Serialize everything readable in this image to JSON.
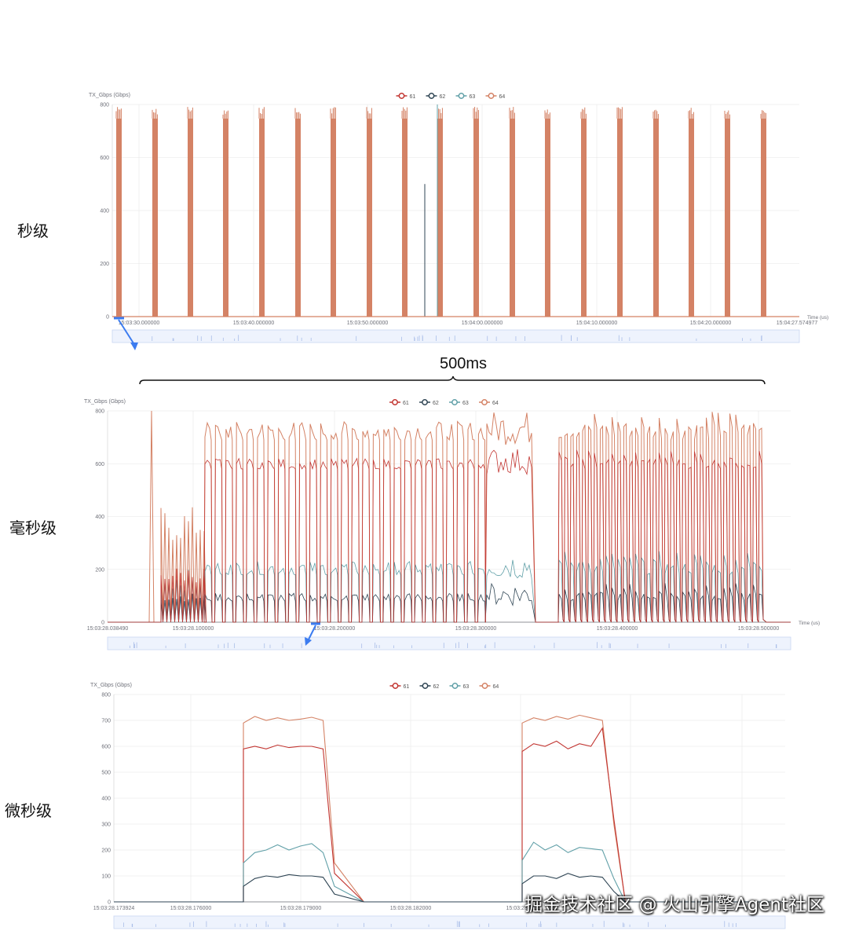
{
  "labels": {
    "seconds": "秒级",
    "milliseconds": "毫秒级",
    "microseconds": "微秒级",
    "span": "500ms"
  },
  "watermark": "掘金技术社区 @ 火山引擎Agent社区",
  "colors": {
    "61": "#c23531",
    "62": "#2f4554",
    "63": "#61a0a8",
    "64": "#d48265",
    "axis": "#6e7079",
    "grid": "#e6e6e6",
    "zoom": "#3c7cf0"
  },
  "chart_data": [
    {
      "type": "line",
      "ylabel": "TX_Gbps (Gbps)",
      "xlabel": "Time (us)",
      "legend": [
        "61",
        "62",
        "63",
        "64"
      ],
      "ylim": [
        0,
        800
      ],
      "yticks": [
        "800",
        "600",
        "400",
        "200",
        "0"
      ],
      "xticks": [
        "15:03:30.000000",
        "15:03:40.000000",
        "15:03:50.000000",
        "15:04:00.000000",
        "15:04:10.000000",
        "15:04:20.000000",
        "15:04:27.574977"
      ],
      "series": [
        {
          "name": "64",
          "description_free": true,
          "bursts_x": [
            0.5,
            3.4,
            6.5,
            9.6,
            12.8,
            15.8,
            18.7,
            21.8,
            24.8,
            28.0,
            31.2,
            34.4,
            37.5,
            40.7,
            43.8,
            47.0,
            50.0,
            53.2,
            56.3
          ],
          "burst_peak": 780
        },
        {
          "name": "63",
          "spike_x": 27.3,
          "spike_value": 500
        }
      ]
    },
    {
      "type": "line",
      "ylabel": "TX_Gbps (Gbps)",
      "xlabel": "Time (us)",
      "legend": [
        "61",
        "62",
        "63",
        "64"
      ],
      "ylim": [
        0,
        800
      ],
      "yticks": [
        "800",
        "600",
        "400",
        "200",
        "0"
      ],
      "xticks": [
        "15:03:28.038490",
        "15:03:28.100000",
        "15:03:28.200000",
        "15:03:28.300000",
        "15:03:28.400000",
        "15:03:28.500000"
      ],
      "series": [
        {
          "name": "61",
          "plateau": 600
        },
        {
          "name": "62",
          "plateau": 100
        },
        {
          "name": "63",
          "plateau": 200
        },
        {
          "name": "64",
          "plateau": 730
        }
      ]
    },
    {
      "type": "line",
      "ylabel": "TX_Gbps (Gbps)",
      "legend": [
        "61",
        "62",
        "63",
        "64"
      ],
      "ylim": [
        0,
        800
      ],
      "yticks": [
        "800",
        "700",
        "600",
        "500",
        "400",
        "300",
        "200",
        "100",
        "0"
      ],
      "xticks": [
        "15:03:28.173924",
        "15:03:28.176000",
        "15:03:28.179000",
        "15:03:28.182000",
        "15:03:28.18"
      ],
      "series": [
        {
          "name": "64",
          "values": [
            0,
            0,
            0,
            0,
            0,
            690,
            715,
            700,
            710,
            700,
            705,
            712,
            700,
            150,
            0,
            0,
            0,
            0,
            0,
            0,
            0,
            0,
            0,
            0,
            690,
            710,
            700,
            715,
            705,
            720,
            710,
            700,
            300,
            0,
            0
          ]
        },
        {
          "name": "61",
          "values": [
            0,
            0,
            0,
            0,
            0,
            590,
            600,
            590,
            605,
            595,
            600,
            600,
            590,
            110,
            0,
            0,
            0,
            0,
            0,
            0,
            0,
            0,
            0,
            0,
            580,
            610,
            600,
            620,
            590,
            610,
            600,
            670,
            320,
            0,
            0
          ]
        },
        {
          "name": "63",
          "values": [
            0,
            0,
            0,
            0,
            0,
            150,
            190,
            200,
            220,
            200,
            215,
            225,
            190,
            60,
            0,
            0,
            0,
            0,
            0,
            0,
            0,
            0,
            0,
            0,
            160,
            230,
            200,
            220,
            190,
            210,
            205,
            200,
            90,
            0,
            0
          ]
        },
        {
          "name": "62",
          "values": [
            0,
            0,
            0,
            0,
            0,
            60,
            90,
            100,
            95,
            105,
            100,
            100,
            95,
            30,
            0,
            0,
            0,
            0,
            0,
            0,
            0,
            0,
            0,
            0,
            70,
            100,
            100,
            90,
            110,
            95,
            100,
            95,
            40,
            0,
            0
          ]
        }
      ]
    }
  ]
}
